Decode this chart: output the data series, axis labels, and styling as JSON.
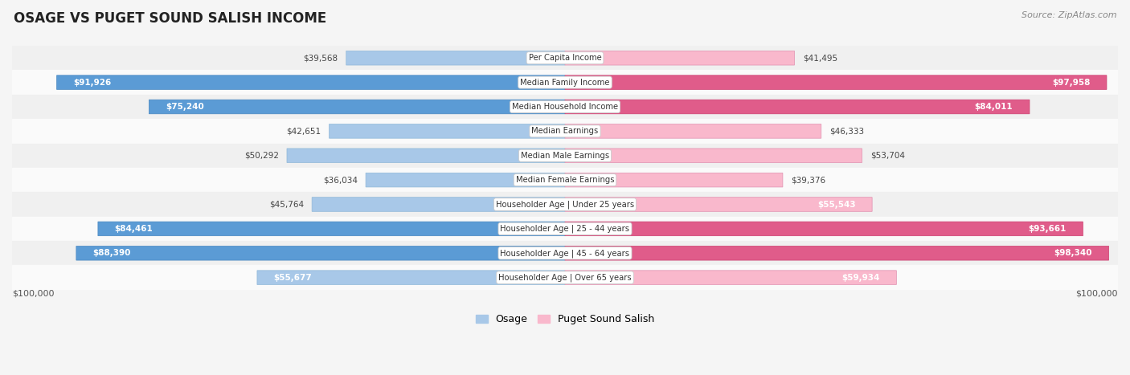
{
  "title": "OSAGE VS PUGET SOUND SALISH INCOME",
  "source": "Source: ZipAtlas.com",
  "categories": [
    "Per Capita Income",
    "Median Family Income",
    "Median Household Income",
    "Median Earnings",
    "Median Male Earnings",
    "Median Female Earnings",
    "Householder Age | Under 25 years",
    "Householder Age | 25 - 44 years",
    "Householder Age | 45 - 64 years",
    "Householder Age | Over 65 years"
  ],
  "osage_values": [
    39568,
    91926,
    75240,
    42651,
    50292,
    36034,
    45764,
    84461,
    88390,
    55677
  ],
  "puget_values": [
    41495,
    97958,
    84011,
    46333,
    53704,
    39376,
    55543,
    93661,
    98340,
    59934
  ],
  "osage_labels": [
    "$39,568",
    "$91,926",
    "$75,240",
    "$42,651",
    "$50,292",
    "$36,034",
    "$45,764",
    "$84,461",
    "$88,390",
    "$55,677"
  ],
  "puget_labels": [
    "$41,495",
    "$97,958",
    "$84,011",
    "$46,333",
    "$53,704",
    "$39,376",
    "$55,543",
    "$93,661",
    "$98,340",
    "$59,934"
  ],
  "max_value": 100000,
  "osage_color_light": "#a8c8e8",
  "osage_color_dark": "#5b9bd5",
  "puget_color_light": "#f9b8cc",
  "puget_color_dark": "#e05c8a",
  "background_color": "#f5f5f5",
  "row_bg_even": "#f0f0f0",
  "row_bg_odd": "#fafafa",
  "inside_label_threshold": 55000,
  "legend_osage": "Osage",
  "legend_puget": "Puget Sound Salish",
  "xlabel_left": "$100,000",
  "xlabel_right": "$100,000"
}
